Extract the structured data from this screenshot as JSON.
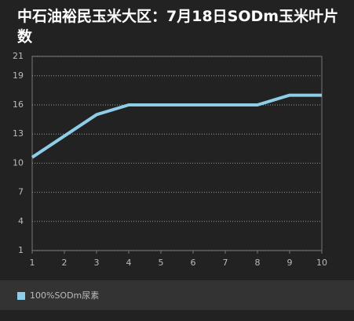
{
  "chart_data": {
    "type": "line",
    "title": "中石油裕民玉米大区：7月18日SODm玉米叶片数",
    "x": [
      1,
      2,
      3,
      4,
      5,
      6,
      7,
      8,
      9,
      10
    ],
    "xlim": [
      1,
      10
    ],
    "xticks": [
      1,
      2,
      3,
      4,
      5,
      6,
      7,
      8,
      9,
      10
    ],
    "ylim": [
      1,
      21
    ],
    "yticks": [
      1,
      4,
      7,
      10,
      13,
      16,
      19,
      21
    ],
    "grid": true,
    "legend": "bottom",
    "series": [
      {
        "name": "100%SODm尿素",
        "color": "#8ecde8",
        "values": [
          10.6,
          12.8,
          15,
          16,
          16,
          16,
          16,
          16,
          17,
          17
        ]
      }
    ]
  }
}
